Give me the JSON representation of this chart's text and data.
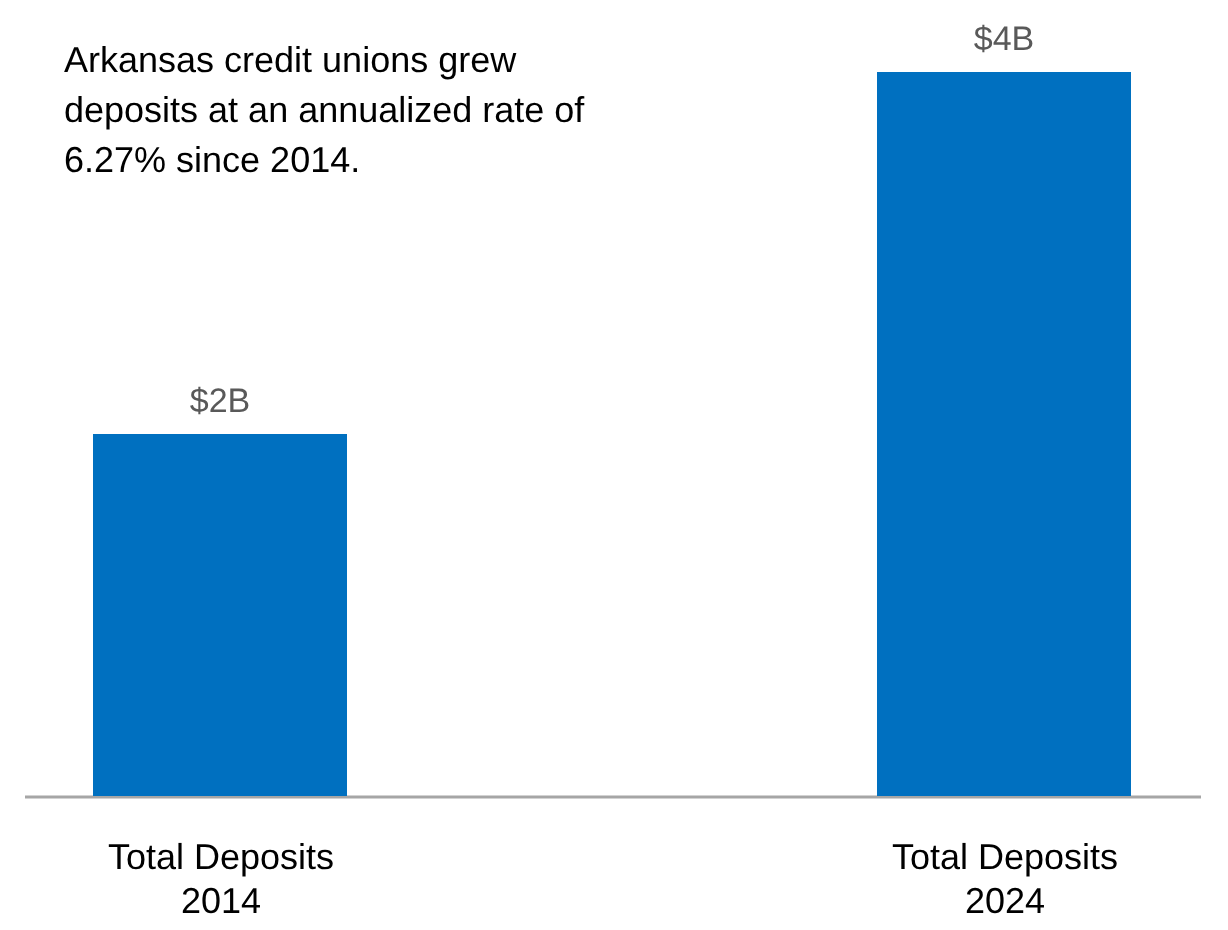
{
  "chart_data": {
    "type": "bar",
    "ylim": [
      0,
      4
    ],
    "categories": [
      "Total Deposits\n2014",
      "Total Deposits\n2024"
    ],
    "values": [
      2,
      4
    ],
    "color": "#0070c0",
    "value_labels": [
      "$2B",
      "$4B"
    ],
    "annotations": [
      "Arkansas credit unions grew\ndeposits at an annualized rate of\n6.27% since 2014."
    ]
  }
}
